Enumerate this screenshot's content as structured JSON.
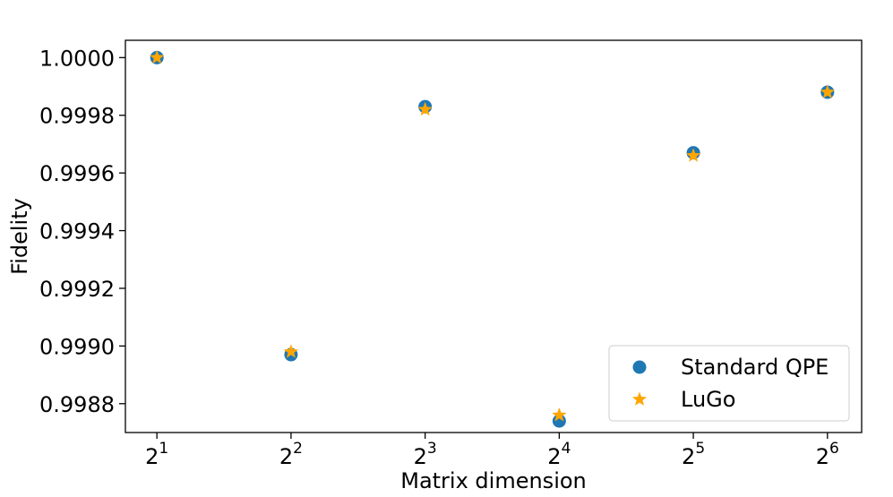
{
  "chart_data": {
    "type": "scatter",
    "title": "",
    "xlabel": "Matrix dimension",
    "ylabel": "Fidelity",
    "x": [
      1,
      2,
      3,
      4,
      5,
      6
    ],
    "x_tick_labels": [
      {
        "base": "2",
        "exp": "1"
      },
      {
        "base": "2",
        "exp": "2"
      },
      {
        "base": "2",
        "exp": "3"
      },
      {
        "base": "2",
        "exp": "4"
      },
      {
        "base": "2",
        "exp": "5"
      },
      {
        "base": "2",
        "exp": "6"
      }
    ],
    "xlim": [
      0.765,
      6.255
    ],
    "ylim": [
      0.9987,
      1.00006
    ],
    "y_ticks": [
      0.9988,
      0.999,
      0.9992,
      0.9994,
      0.9996,
      0.9998,
      1.0
    ],
    "y_tick_labels": [
      "0.9988",
      "0.9990",
      "0.9992",
      "0.9994",
      "0.9996",
      "0.9998",
      "1.0000"
    ],
    "grid": false,
    "legend_position": "bottom-right",
    "series": [
      {
        "name": "Standard QPE",
        "marker": "circle",
        "color": "#1f77b4",
        "values": [
          1.0,
          0.99897,
          0.99983,
          0.99874,
          0.99967,
          0.99988
        ]
      },
      {
        "name": "LuGo",
        "marker": "star",
        "color": "#ffa500",
        "values": [
          1.0,
          0.99898,
          0.99982,
          0.99876,
          0.99966,
          0.99988
        ]
      }
    ]
  }
}
